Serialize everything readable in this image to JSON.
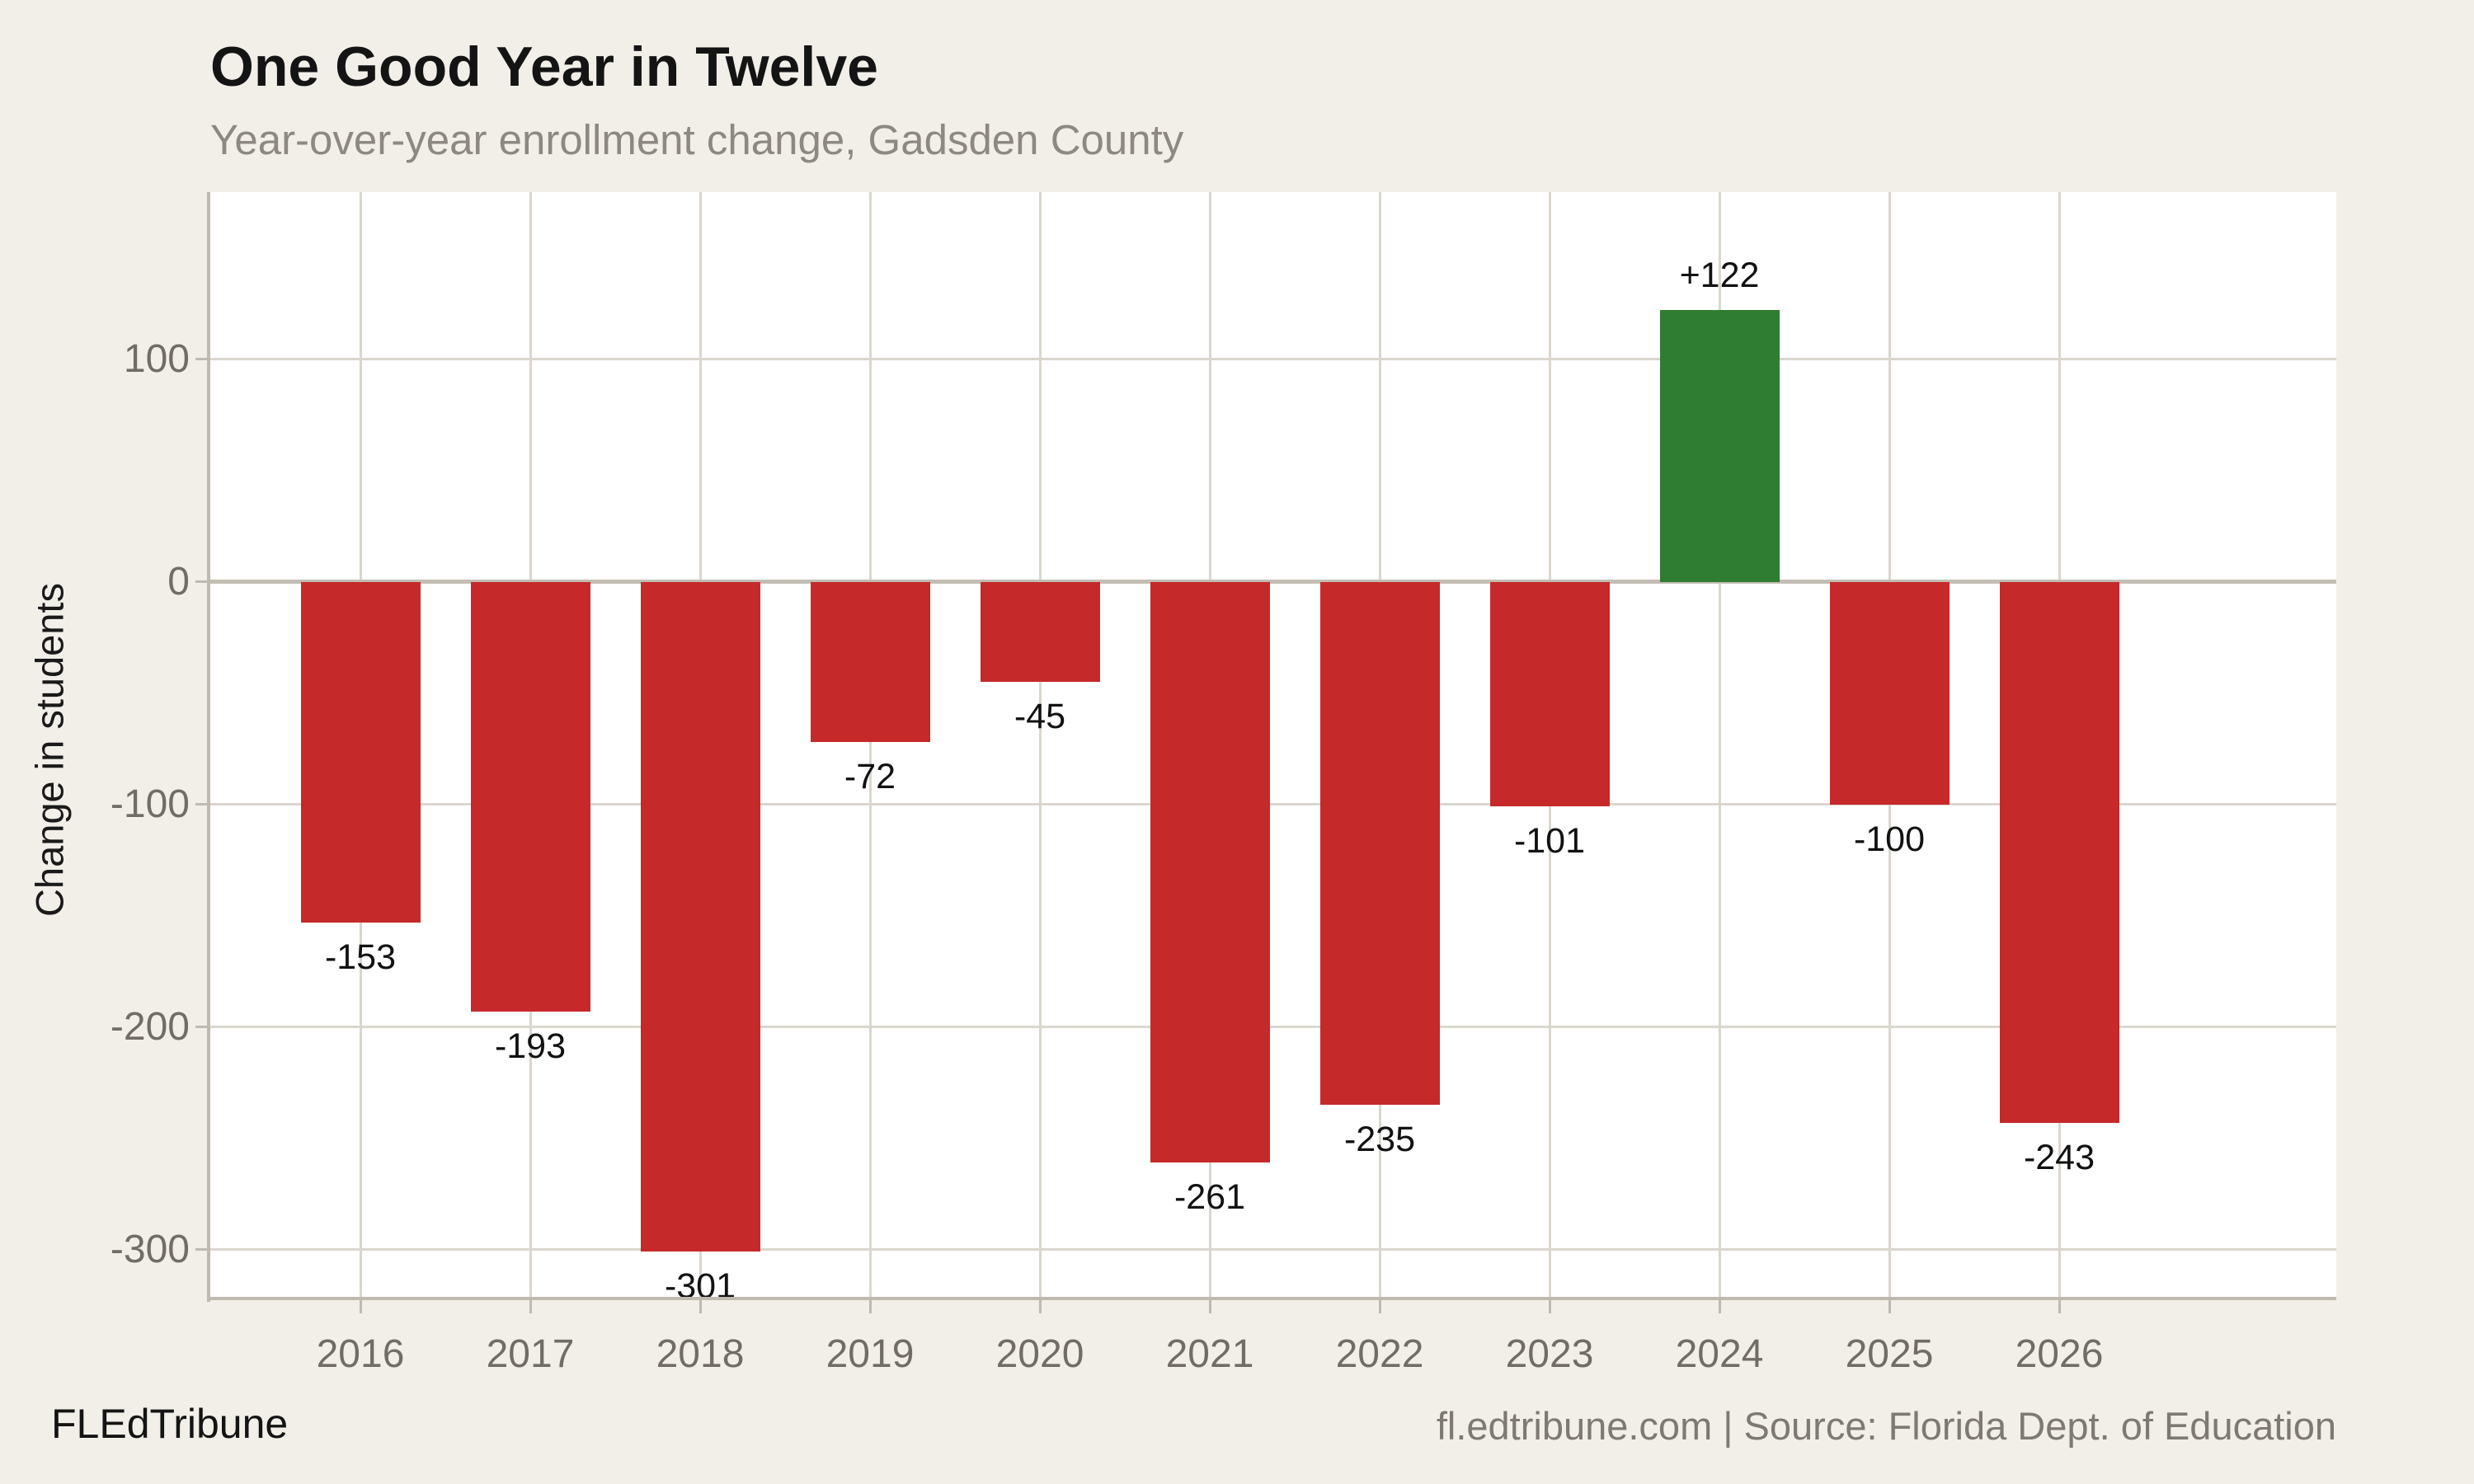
{
  "header": {
    "title": "One Good Year in Twelve",
    "subtitle": "Year-over-year enrollment change, Gadsden County"
  },
  "footer": {
    "brand": "FLEdTribune",
    "source": "fl.edtribune.com | Source: Florida Dept. of Education"
  },
  "chart_data": {
    "type": "bar",
    "title": "One Good Year in Twelve",
    "subtitle": "Year-over-year enrollment change, Gadsden County",
    "xlabel": "",
    "ylabel": "Change in students",
    "categories": [
      "2016",
      "2017",
      "2018",
      "2019",
      "2020",
      "2021",
      "2022",
      "2023",
      "2024",
      "2025",
      "2026"
    ],
    "values": [
      -153,
      -193,
      -301,
      -72,
      -45,
      -261,
      -235,
      -101,
      122,
      -100,
      -243
    ],
    "value_labels": [
      "-153",
      "-193",
      "-301",
      "-72",
      "-45",
      "-261",
      "-235",
      "-101",
      "+122",
      "-100",
      "-243"
    ],
    "ylim": [
      -322,
      175
    ],
    "yticks": [
      100,
      0,
      -100,
      -200,
      -300
    ],
    "grid": true,
    "legend": false,
    "colors": {
      "bar_negative": "#C5292A",
      "bar_positive": "#2E7D32",
      "page_background": "#F2EFE9",
      "panel_background": "#FFFFFF",
      "gridline": "#DBD6CE",
      "zero_line": "#C3BDB3",
      "axis_line": "#BFB9AF",
      "tick_text": "#716C64",
      "subtitle_text": "#8D8880",
      "source_text": "#7E7971"
    }
  }
}
